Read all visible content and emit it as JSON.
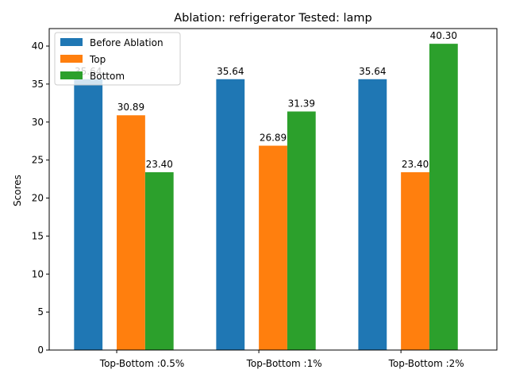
{
  "chart_data": {
    "type": "bar",
    "title": "Ablation: refrigerator Tested: lamp",
    "xlabel": "",
    "ylabel": "Scores",
    "categories": [
      "Top-Bottom :0.5%",
      "Top-Bottom :1%",
      "Top-Bottom :2%"
    ],
    "ylim": [
      0,
      42.3
    ],
    "yticks": [
      0,
      5,
      10,
      15,
      20,
      25,
      30,
      35,
      40
    ],
    "series": [
      {
        "name": "Before Ablation",
        "color": "#1f77b4",
        "values": [
          35.64,
          35.64,
          35.64
        ],
        "labels": [
          "35.64",
          "35.64",
          "35.64"
        ]
      },
      {
        "name": "Top",
        "color": "#ff7f0e",
        "values": [
          30.89,
          26.89,
          23.4
        ],
        "labels": [
          "30.89",
          "26.89",
          "23.40"
        ]
      },
      {
        "name": "Bottom",
        "color": "#2ca02c",
        "values": [
          23.4,
          31.39,
          40.3
        ],
        "labels": [
          "23.40",
          "31.39",
          "40.30"
        ]
      }
    ],
    "grid": false,
    "legend_position": "top-left"
  }
}
